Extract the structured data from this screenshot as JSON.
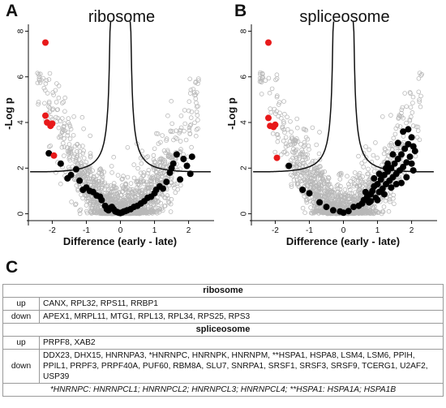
{
  "panels": {
    "A": "A",
    "B": "B",
    "C": "C"
  },
  "chart_data": [
    {
      "type": "scatter",
      "title": "ribosome",
      "xlabel": "Difference (early - late)",
      "ylabel": "-Log p",
      "xlim": [
        -2.7,
        2.7
      ],
      "ylim": [
        -0.3,
        8.3
      ],
      "xticks": [
        "-2",
        "-1",
        "0",
        "1",
        "2"
      ],
      "yticks": [
        "0",
        "2",
        "4",
        "6",
        "8"
      ],
      "colors": {
        "background": "#b8b8b8",
        "highlight_up": "#e8191a",
        "highlight_down": "#000000"
      },
      "series": [
        {
          "color": "#e8191a",
          "points": [
            [
              -2.2,
              7.5
            ],
            [
              -2.2,
              4.3
            ],
            [
              -2.15,
              4.0
            ],
            [
              -2.05,
              3.85
            ],
            [
              -2.0,
              3.95
            ],
            [
              -1.95,
              2.55
            ]
          ]
        },
        {
          "color": "#000000",
          "points": [
            [
              -2.1,
              2.65
            ],
            [
              -1.75,
              2.2
            ],
            [
              -1.55,
              1.55
            ],
            [
              -1.45,
              1.7
            ],
            [
              -1.3,
              1.95
            ],
            [
              -1.2,
              1.45
            ],
            [
              -1.1,
              1.05
            ],
            [
              -1.0,
              1.15
            ],
            [
              -0.9,
              1.0
            ],
            [
              -0.8,
              0.95
            ],
            [
              -0.7,
              0.8
            ],
            [
              -0.6,
              0.75
            ],
            [
              -0.55,
              0.6
            ],
            [
              -0.45,
              0.35
            ],
            [
              -0.4,
              0.2
            ],
            [
              -0.35,
              0.15
            ],
            [
              -0.3,
              0.25
            ],
            [
              -0.25,
              0.3
            ],
            [
              -0.2,
              0.2
            ],
            [
              -0.15,
              0.1
            ],
            [
              -0.1,
              0.08
            ],
            [
              -0.05,
              0.05
            ],
            [
              0.0,
              0.03
            ],
            [
              0.05,
              0.06
            ],
            [
              0.1,
              0.1
            ],
            [
              0.15,
              0.12
            ],
            [
              0.2,
              0.15
            ],
            [
              0.3,
              0.2
            ],
            [
              0.4,
              0.3
            ],
            [
              0.5,
              0.35
            ],
            [
              0.6,
              0.45
            ],
            [
              0.7,
              0.55
            ],
            [
              0.8,
              0.7
            ],
            [
              0.9,
              0.75
            ],
            [
              1.0,
              0.9
            ],
            [
              1.05,
              1.05
            ],
            [
              1.15,
              1.2
            ],
            [
              1.25,
              1.1
            ],
            [
              1.35,
              1.4
            ],
            [
              1.45,
              1.8
            ],
            [
              1.5,
              2.0
            ],
            [
              1.55,
              2.2
            ],
            [
              1.65,
              2.6
            ],
            [
              1.75,
              1.5
            ],
            [
              1.85,
              2.4
            ],
            [
              1.95,
              2.1
            ],
            [
              2.05,
              1.75
            ],
            [
              2.1,
              2.5
            ]
          ]
        }
      ],
      "legend": "none",
      "grid": false
    },
    {
      "type": "scatter",
      "title": "spliceosome",
      "xlabel": "Difference (early - late)",
      "ylabel": "-Log p",
      "xlim": [
        -2.7,
        2.7
      ],
      "ylim": [
        -0.3,
        8.3
      ],
      "xticks": [
        "-2",
        "-1",
        "0",
        "1",
        "2"
      ],
      "yticks": [
        "0",
        "2",
        "4",
        "6",
        "8"
      ],
      "colors": {
        "background": "#b8b8b8",
        "highlight_up": "#e8191a",
        "highlight_down": "#000000"
      },
      "series": [
        {
          "color": "#e8191a",
          "points": [
            [
              -2.2,
              7.5
            ],
            [
              -2.2,
              4.2
            ],
            [
              -2.15,
              3.85
            ],
            [
              -2.05,
              3.8
            ],
            [
              -2.0,
              3.9
            ],
            [
              -1.95,
              2.45
            ]
          ]
        },
        {
          "color": "#000000",
          "points": [
            [
              -1.6,
              2.1
            ],
            [
              -1.2,
              1.05
            ],
            [
              -1.0,
              0.9
            ],
            [
              -0.7,
              0.5
            ],
            [
              -0.5,
              0.3
            ],
            [
              -0.3,
              0.15
            ],
            [
              -0.1,
              0.1
            ],
            [
              0.0,
              0.05
            ],
            [
              0.15,
              0.12
            ],
            [
              0.3,
              0.3
            ],
            [
              0.45,
              0.35
            ],
            [
              0.55,
              0.45
            ],
            [
              0.6,
              0.6
            ],
            [
              0.7,
              0.75
            ],
            [
              0.75,
              0.5
            ],
            [
              0.8,
              0.85
            ],
            [
              0.85,
              1.0
            ],
            [
              0.9,
              1.2
            ],
            [
              0.95,
              0.7
            ],
            [
              1.0,
              1.3
            ],
            [
              1.05,
              0.95
            ],
            [
              1.1,
              1.5
            ],
            [
              1.15,
              1.1
            ],
            [
              1.2,
              1.7
            ],
            [
              1.25,
              1.3
            ],
            [
              1.3,
              1.85
            ],
            [
              1.35,
              1.45
            ],
            [
              1.4,
              2.0
            ],
            [
              1.45,
              1.6
            ],
            [
              1.5,
              2.2
            ],
            [
              1.55,
              1.75
            ],
            [
              1.6,
              2.4
            ],
            [
              1.65,
              1.9
            ],
            [
              1.7,
              2.6
            ],
            [
              1.75,
              2.05
            ],
            [
              1.8,
              2.85
            ],
            [
              1.85,
              2.25
            ],
            [
              1.9,
              3.05
            ],
            [
              1.95,
              2.5
            ],
            [
              2.0,
              3.35
            ],
            [
              2.05,
              1.9
            ],
            [
              2.1,
              2.75
            ],
            [
              1.6,
              3.1
            ],
            [
              1.75,
              3.6
            ],
            [
              1.9,
              3.7
            ],
            [
              2.0,
              2.2
            ],
            [
              1.3,
              2.2
            ],
            [
              1.05,
              1.75
            ],
            [
              0.9,
              1.55
            ],
            [
              1.45,
              2.6
            ],
            [
              1.2,
              0.85
            ],
            [
              0.65,
              0.95
            ],
            [
              1.55,
              1.3
            ],
            [
              1.85,
              1.6
            ],
            [
              2.05,
              2.95
            ],
            [
              1.7,
              1.35
            ],
            [
              1.4,
              1.15
            ],
            [
              1.0,
              0.6
            ],
            [
              0.8,
              0.55
            ],
            [
              1.25,
              2.0
            ]
          ]
        }
      ],
      "legend": "none",
      "grid": false
    }
  ],
  "table": {
    "ribosome_header": "ribosome",
    "ribosome_rows": [
      {
        "label": "up",
        "genes": "CANX, RPL32, RPS11, RRBP1"
      },
      {
        "label": "down",
        "genes": "APEX1, MRPL11, MTG1, RPL13, RPL34, RPS25, RPS3"
      }
    ],
    "spliceosome_header": "spliceosome",
    "spliceosome_rows": [
      {
        "label": "up",
        "genes": "PRPF8, XAB2"
      },
      {
        "label": "down",
        "genes": "DDX23, DHX15, HNRNPA3, *HNRNPC, HNRNPK, HNRNPM, **HSPA1, HSPA8, LSM4, LSM6, PPIH, PPIL1, PRPF3, PRPF40A, PUF60, RBM8A, SLU7, SNRPA1, SRSF1, SRSF3, SRSF9, TCERG1, U2AF2, USP39"
      }
    ],
    "footnote": "*HNRNPC: HNRNPCL1; HNRNPCL2; HNRNPCL3; HNRNPCL4; **HSPA1: HSPA1A; HSPA1B"
  }
}
